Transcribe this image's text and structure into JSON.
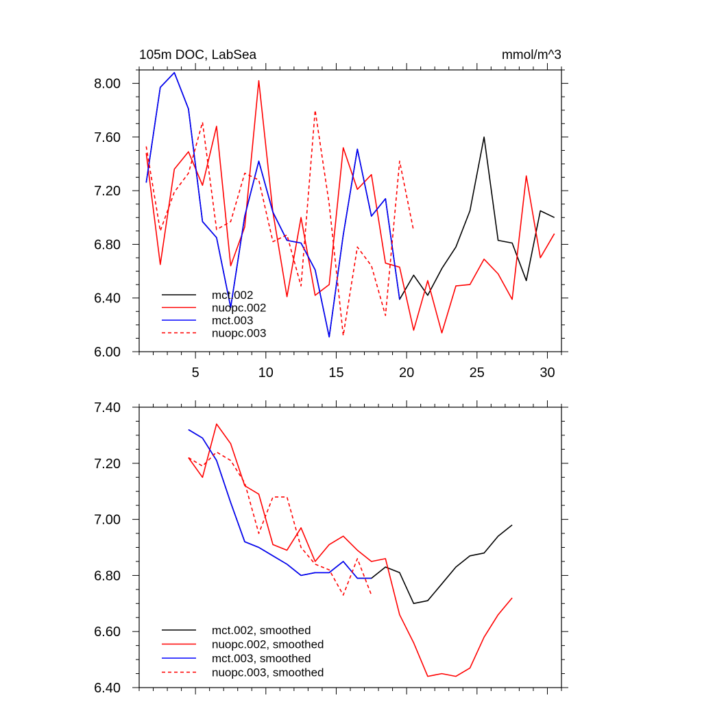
{
  "chart_data": [
    {
      "type": "line",
      "title": "105m DOC, LabSea",
      "units": "mmol/m^3",
      "xlim": [
        1,
        31
      ],
      "ylim": [
        6.0,
        8.1
      ],
      "xticks": [
        5,
        10,
        15,
        20,
        25,
        30
      ],
      "xtick_labels": [
        "5",
        "10",
        "15",
        "20",
        "25",
        "30"
      ],
      "yticks": [
        6.0,
        6.4,
        6.8,
        7.2,
        7.6,
        8.0
      ],
      "ytick_labels": [
        "6.00",
        "6.40",
        "6.80",
        "7.20",
        "7.60",
        "8.00"
      ],
      "legend_location": "bottom-left",
      "series": [
        {
          "name": "mct.002",
          "color": "#000000",
          "dash": "solid",
          "x": [
            1.5,
            2.5,
            3.5,
            4.5,
            5.5,
            6.5,
            7.5,
            8.5,
            9.5,
            10.5,
            11.5,
            12.5,
            13.5,
            14.5,
            15.5,
            16.5,
            17.5,
            18.5,
            19.5,
            20.5,
            21.5,
            22.5,
            23.5,
            24.5,
            25.5,
            26.5,
            27.5,
            28.5,
            29.5,
            30.5
          ],
          "y": [
            7.26,
            7.97,
            8.08,
            7.81,
            6.97,
            6.85,
            6.33,
            7.01,
            7.42,
            7.04,
            6.83,
            6.81,
            6.61,
            6.11,
            6.87,
            7.51,
            7.01,
            7.14,
            6.39,
            6.57,
            6.42,
            6.62,
            6.78,
            7.05,
            7.6,
            6.83,
            6.81,
            6.53,
            7.05,
            7.0
          ]
        },
        {
          "name": "nuopc.002",
          "color": "#ff0000",
          "dash": "solid",
          "x": [
            1.5,
            2.5,
            3.5,
            4.5,
            5.5,
            6.5,
            7.5,
            8.5,
            9.5,
            10.5,
            11.5,
            12.5,
            13.5,
            14.5,
            15.5,
            16.5,
            17.5,
            18.5,
            19.5,
            20.5,
            21.5,
            22.5,
            23.5,
            24.5,
            25.5,
            26.5,
            27.5,
            28.5,
            29.5,
            30.5
          ],
          "y": [
            7.48,
            6.65,
            7.36,
            7.49,
            7.24,
            7.68,
            6.64,
            6.93,
            8.02,
            7.04,
            6.41,
            7.0,
            6.42,
            6.5,
            7.52,
            7.21,
            7.32,
            6.66,
            6.63,
            6.16,
            6.53,
            6.14,
            6.49,
            6.5,
            6.69,
            6.58,
            6.39,
            7.31,
            6.7,
            6.88
          ]
        },
        {
          "name": "mct.003",
          "color": "#0000ff",
          "dash": "solid",
          "x": [
            1.5,
            2.5,
            3.5,
            4.5,
            5.5,
            6.5,
            7.5,
            8.5,
            9.5,
            10.5,
            11.5,
            12.5,
            13.5,
            14.5,
            15.5,
            16.5,
            17.5,
            18.5,
            19.5
          ],
          "y": [
            7.26,
            7.97,
            8.08,
            7.81,
            6.97,
            6.85,
            6.33,
            7.01,
            7.42,
            7.04,
            6.83,
            6.81,
            6.61,
            6.11,
            6.87,
            7.51,
            7.01,
            7.14,
            6.39
          ]
        },
        {
          "name": "nuopc.003",
          "color": "#ff0000",
          "dash": "dashed",
          "x": [
            1.5,
            2.5,
            3.5,
            4.5,
            5.5,
            6.5,
            7.5,
            8.5,
            9.5,
            10.5,
            11.5,
            12.5,
            13.5,
            14.5,
            15.5,
            16.5,
            17.5,
            18.5,
            19.5,
            20.5
          ],
          "y": [
            7.53,
            6.9,
            7.19,
            7.33,
            7.71,
            6.91,
            6.97,
            7.33,
            7.28,
            6.82,
            6.87,
            6.49,
            7.8,
            7.1,
            6.12,
            6.78,
            6.64,
            6.27,
            7.42,
            6.9
          ]
        }
      ]
    },
    {
      "type": "line",
      "title": "",
      "units": "",
      "xlim": [
        1,
        31
      ],
      "ylim": [
        6.4,
        7.4
      ],
      "xticks": [
        5,
        10,
        15,
        20,
        25,
        30
      ],
      "xtick_labels": [],
      "yticks": [
        6.4,
        6.6,
        6.8,
        7.0,
        7.2,
        7.4
      ],
      "ytick_labels": [
        "6.40",
        "6.60",
        "6.80",
        "7.00",
        "7.20",
        "7.40"
      ],
      "legend_location": "bottom-left",
      "series": [
        {
          "name": "mct.002, smoothed",
          "color": "#000000",
          "dash": "solid",
          "x": [
            4.5,
            5.5,
            6.5,
            7.5,
            8.5,
            9.5,
            10.5,
            11.5,
            12.5,
            13.5,
            14.5,
            15.5,
            16.5,
            17.5,
            18.5,
            19.5,
            20.5,
            21.5,
            22.5,
            23.5,
            24.5,
            25.5,
            26.5,
            27.5
          ],
          "y": [
            7.32,
            7.29,
            7.21,
            7.06,
            6.92,
            6.9,
            6.87,
            6.84,
            6.8,
            6.81,
            6.81,
            6.85,
            6.79,
            6.79,
            6.83,
            6.81,
            6.7,
            6.71,
            6.77,
            6.83,
            6.87,
            6.88,
            6.94,
            6.98
          ]
        },
        {
          "name": "nuopc.002, smoothed",
          "color": "#ff0000",
          "dash": "solid",
          "x": [
            4.5,
            5.5,
            6.5,
            7.5,
            8.5,
            9.5,
            10.5,
            11.5,
            12.5,
            13.5,
            14.5,
            15.5,
            16.5,
            17.5,
            18.5,
            19.5,
            20.5,
            21.5,
            22.5,
            23.5,
            24.5,
            25.5,
            26.5,
            27.5
          ],
          "y": [
            7.22,
            7.15,
            7.34,
            7.27,
            7.12,
            7.09,
            6.91,
            6.89,
            6.97,
            6.85,
            6.91,
            6.94,
            6.89,
            6.85,
            6.86,
            6.66,
            6.56,
            6.44,
            6.45,
            6.44,
            6.47,
            6.58,
            6.66,
            6.72
          ]
        },
        {
          "name": "mct.003, smoothed",
          "color": "#0000ff",
          "dash": "solid",
          "x": [
            4.5,
            5.5,
            6.5,
            7.5,
            8.5,
            9.5,
            10.5,
            11.5,
            12.5,
            13.5,
            14.5,
            15.5,
            16.5,
            17.5
          ],
          "y": [
            7.32,
            7.29,
            7.21,
            7.06,
            6.92,
            6.9,
            6.87,
            6.84,
            6.8,
            6.81,
            6.81,
            6.85,
            6.79,
            6.79
          ]
        },
        {
          "name": "nuopc.003, smoothed",
          "color": "#ff0000",
          "dash": "dashed",
          "x": [
            4.5,
            5.5,
            6.5,
            7.5,
            8.5,
            9.5,
            10.5,
            11.5,
            12.5,
            13.5,
            14.5,
            15.5,
            16.5,
            17.5
          ],
          "y": [
            7.22,
            7.19,
            7.24,
            7.21,
            7.13,
            6.95,
            7.08,
            7.08,
            6.9,
            6.84,
            6.82,
            6.73,
            6.86,
            6.73
          ]
        }
      ]
    }
  ]
}
